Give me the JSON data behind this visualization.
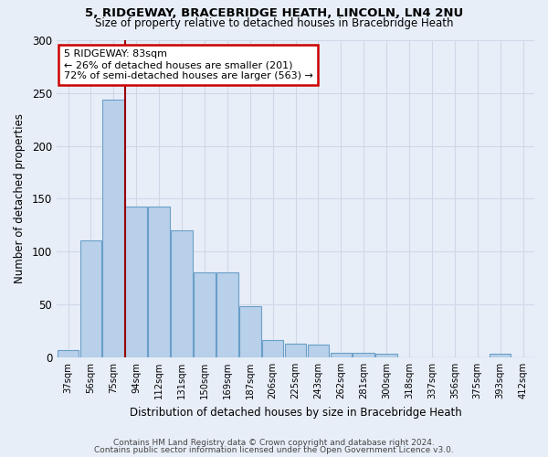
{
  "title_line1": "5, RIDGEWAY, BRACEBRIDGE HEATH, LINCOLN, LN4 2NU",
  "title_line2": "Size of property relative to detached houses in Bracebridge Heath",
  "xlabel": "Distribution of detached houses by size in Bracebridge Heath",
  "ylabel": "Number of detached properties",
  "footer_line1": "Contains HM Land Registry data © Crown copyright and database right 2024.",
  "footer_line2": "Contains public sector information licensed under the Open Government Licence v3.0.",
  "categories": [
    "37sqm",
    "56sqm",
    "75sqm",
    "94sqm",
    "112sqm",
    "131sqm",
    "150sqm",
    "169sqm",
    "187sqm",
    "206sqm",
    "225sqm",
    "243sqm",
    "262sqm",
    "281sqm",
    "300sqm",
    "318sqm",
    "337sqm",
    "356sqm",
    "375sqm",
    "393sqm",
    "412sqm"
  ],
  "values": [
    7,
    111,
    244,
    143,
    143,
    120,
    80,
    80,
    48,
    16,
    13,
    12,
    4,
    4,
    3,
    0,
    0,
    0,
    0,
    3,
    0
  ],
  "bar_color": "#b8d0ea",
  "bar_edge_color": "#6a9fc8",
  "grid_color": "#d0d8e8",
  "annotation_text": "5 RIDGEWAY: 83sqm\n← 26% of detached houses are smaller (201)\n72% of semi-detached houses are larger (563) →",
  "annotation_box_color": "white",
  "annotation_box_edge": "#cc0000",
  "vline_color": "#990000",
  "vline_x": 2.49,
  "ylim": [
    0,
    300
  ],
  "yticks": [
    0,
    50,
    100,
    150,
    200,
    250,
    300
  ],
  "background_color": "#e8eef8"
}
